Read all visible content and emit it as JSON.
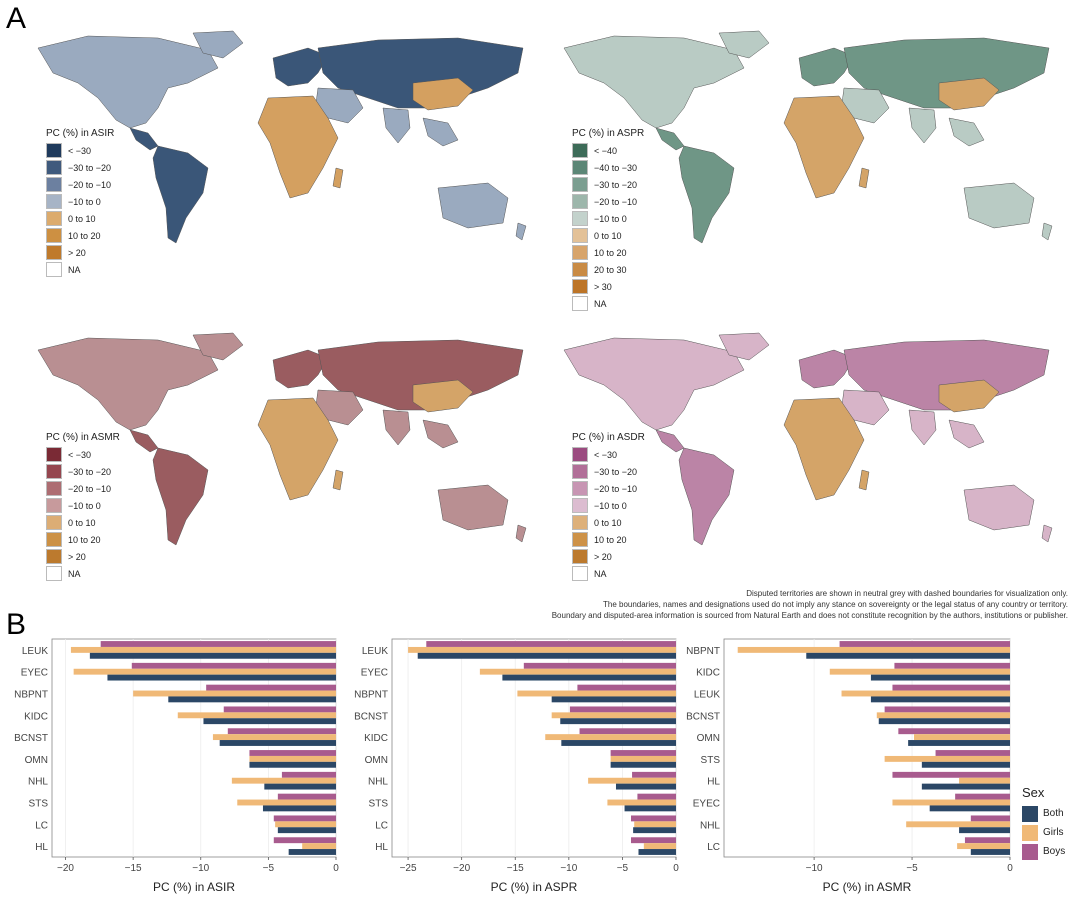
{
  "panel_labels": {
    "a": "A",
    "b": "B"
  },
  "colors": {
    "both": "#2b4766",
    "girls": "#f0b977",
    "boys": "#a85b8e",
    "map_land_na": "#ffffff"
  },
  "maps": [
    {
      "id": "asir",
      "legend_title": "PC (%) in ASIR",
      "base_color": "#9aaabf",
      "accent_color": "#3a5678",
      "hot_color": "#d4a060",
      "legend": [
        {
          "label": "< −30",
          "color": "#1f3a5c"
        },
        {
          "label": "−30 to −20",
          "color": "#3f5a7d"
        },
        {
          "label": "−20 to −10",
          "color": "#6c80a0"
        },
        {
          "label": "−10 to 0",
          "color": "#a7b4c6"
        },
        {
          "label": "0 to 10",
          "color": "#dcab6d"
        },
        {
          "label": "10 to 20",
          "color": "#cd9042"
        },
        {
          "label": "> 20",
          "color": "#bf7a2c"
        },
        {
          "label": "NA",
          "color": "#ffffff"
        }
      ]
    },
    {
      "id": "aspr",
      "legend_title": "PC (%) in ASPR",
      "base_color": "#b9cbc4",
      "accent_color": "#6f9686",
      "hot_color": "#d4a468",
      "legend": [
        {
          "label": "< −40",
          "color": "#3d6b58"
        },
        {
          "label": "−40 to −30",
          "color": "#5c8676"
        },
        {
          "label": "−30 to −20",
          "color": "#7b9e90"
        },
        {
          "label": "−20 to −10",
          "color": "#9db6ab"
        },
        {
          "label": "−10 to 0",
          "color": "#c3d2cc"
        },
        {
          "label": "0 to 10",
          "color": "#e3c197"
        },
        {
          "label": "10 to 20",
          "color": "#d7a46b"
        },
        {
          "label": "20 to 30",
          "color": "#c98b45"
        },
        {
          "label": "> 30",
          "color": "#bd7528"
        },
        {
          "label": "NA",
          "color": "#ffffff"
        }
      ]
    },
    {
      "id": "asmr",
      "legend_title": "PC (%) in ASMR",
      "base_color": "#b98f92",
      "accent_color": "#9a5c60",
      "hot_color": "#d4a468",
      "legend": [
        {
          "label": "< −30",
          "color": "#7a2a35"
        },
        {
          "label": "−30 to −20",
          "color": "#95464f"
        },
        {
          "label": "−20 to −10",
          "color": "#ad6d72"
        },
        {
          "label": "−10 to 0",
          "color": "#c79a9c"
        },
        {
          "label": "0 to 10",
          "color": "#dcad75"
        },
        {
          "label": "10 to 20",
          "color": "#cc9145"
        },
        {
          "label": "> 20",
          "color": "#bc7a2e"
        },
        {
          "label": "NA",
          "color": "#ffffff"
        }
      ]
    },
    {
      "id": "asdr",
      "legend_title": "PC (%) in ASDR",
      "base_color": "#d7b4c8",
      "accent_color": "#bb84a6",
      "hot_color": "#d4a468",
      "legend": [
        {
          "label": "< −30",
          "color": "#9b4b80"
        },
        {
          "label": "−30 to −20",
          "color": "#b16f98"
        },
        {
          "label": "−20 to −10",
          "color": "#c795b3"
        },
        {
          "label": "−10 to 0",
          "color": "#dcbcd0"
        },
        {
          "label": "0 to 10",
          "color": "#ddb07a"
        },
        {
          "label": "10 to 20",
          "color": "#cd9248"
        },
        {
          "label": "> 20",
          "color": "#bc7a2e"
        },
        {
          "label": "NA",
          "color": "#ffffff"
        }
      ]
    }
  ],
  "disclaimer": [
    "Disputed territories are shown in neutral grey with dashed boundaries for visualization only.",
    "The boundaries, names and designations used do not imply any stance on sovereignty or the legal status of any country or territory.",
    "Boundary and disputed-area information is sourced from Natural Earth and does not constitute recognition by the authors, institutions or publisher."
  ],
  "sex_legend": {
    "title": "Sex",
    "items": [
      {
        "name": "Both",
        "color": "#2b4766"
      },
      {
        "name": "Girls",
        "color": "#f0b977"
      },
      {
        "name": "Boys",
        "color": "#a85b8e"
      }
    ]
  },
  "chart_data": [
    {
      "type": "bar",
      "orientation": "horizontal",
      "xlabel": "PC (%) in ASIR",
      "xlim": [
        -21,
        0
      ],
      "xticks": [
        -20,
        -15,
        -10,
        -5,
        0
      ],
      "categories": [
        "LEUK",
        "EYEC",
        "NBPNT",
        "KIDC",
        "BCNST",
        "OMN",
        "NHL",
        "STS",
        "LC",
        "HL"
      ],
      "series": [
        {
          "name": "Boys",
          "values": [
            -17.4,
            -15.1,
            -9.6,
            -8.3,
            -8.0,
            -6.4,
            -4.0,
            -4.3,
            -4.6,
            -4.6
          ]
        },
        {
          "name": "Girls",
          "values": [
            -19.6,
            -19.4,
            -15.0,
            -11.7,
            -9.1,
            -6.4,
            -7.7,
            -7.3,
            -4.5,
            -2.5
          ]
        },
        {
          "name": "Both",
          "values": [
            -18.2,
            -16.9,
            -12.4,
            -9.8,
            -8.6,
            -6.4,
            -5.3,
            -5.4,
            -4.3,
            -3.5
          ]
        }
      ]
    },
    {
      "type": "bar",
      "orientation": "horizontal",
      "xlabel": "PC (%) in ASPR",
      "xlim": [
        -26.5,
        0
      ],
      "xticks": [
        -25,
        -20,
        -15,
        -10,
        -5,
        0
      ],
      "categories": [
        "LEUK",
        "EYEC",
        "NBPNT",
        "BCNST",
        "KIDC",
        "OMN",
        "NHL",
        "STS",
        "LC",
        "HL"
      ],
      "series": [
        {
          "name": "Boys",
          "values": [
            -23.3,
            -14.2,
            -9.2,
            -9.9,
            -9.0,
            -6.1,
            -4.1,
            -3.6,
            -4.2,
            -4.2
          ]
        },
        {
          "name": "Girls",
          "values": [
            -25.0,
            -18.3,
            -14.8,
            -11.6,
            -12.2,
            -6.1,
            -8.2,
            -6.4,
            -3.9,
            -3.0
          ]
        },
        {
          "name": "Both",
          "values": [
            -24.1,
            -16.2,
            -11.6,
            -10.8,
            -10.7,
            -6.1,
            -5.6,
            -4.8,
            -4.0,
            -3.5
          ]
        }
      ]
    },
    {
      "type": "bar",
      "orientation": "horizontal",
      "xlabel": "PC (%) in ASMR",
      "xlim": [
        -14.6,
        0
      ],
      "xticks": [
        -10,
        -5,
        0
      ],
      "categories": [
        "NBPNT",
        "KIDC",
        "LEUK",
        "BCNST",
        "OMN",
        "STS",
        "HL",
        "EYEC",
        "NHL",
        "LC"
      ],
      "series": [
        {
          "name": "Boys",
          "values": [
            -8.7,
            -5.9,
            -6.0,
            -6.4,
            -5.7,
            -3.8,
            -6.0,
            -2.8,
            -2.0,
            -2.3
          ]
        },
        {
          "name": "Girls",
          "values": [
            -13.9,
            -9.2,
            -8.6,
            -6.8,
            -4.9,
            -6.4,
            -2.6,
            -6.0,
            -5.3,
            -2.7
          ]
        },
        {
          "name": "Both",
          "values": [
            -10.4,
            -7.1,
            -7.1,
            -6.7,
            -5.2,
            -4.5,
            -4.5,
            -4.1,
            -2.6,
            -2.0
          ]
        }
      ]
    }
  ]
}
